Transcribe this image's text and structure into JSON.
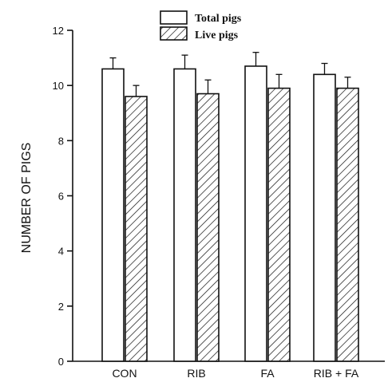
{
  "chart_data": {
    "type": "bar",
    "title": "",
    "xlabel": "",
    "ylabel": "NUMBER OF PIGS",
    "categories": [
      "CON",
      "RIB",
      "FA",
      "RIB + FA"
    ],
    "series": [
      {
        "name": "Total pigs",
        "values": [
          10.6,
          10.6,
          10.7,
          10.4
        ],
        "errors": [
          0.4,
          0.5,
          0.5,
          0.4
        ],
        "pattern": "open"
      },
      {
        "name": "Live pigs",
        "values": [
          9.6,
          9.7,
          9.9,
          9.9
        ],
        "errors": [
          0.4,
          0.5,
          0.5,
          0.4
        ],
        "pattern": "hatched"
      }
    ],
    "ylim": [
      0,
      12
    ],
    "yticks": [
      0,
      2,
      4,
      6,
      8,
      10,
      12
    ],
    "grid": false,
    "legend_position": "top"
  }
}
